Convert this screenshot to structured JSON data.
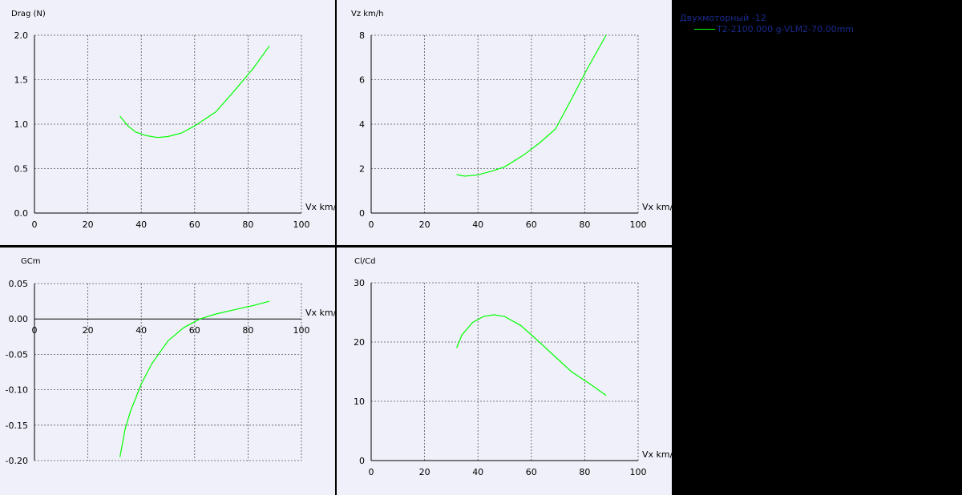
{
  "legend": {
    "title": "Двухмоторный -12",
    "series_label": "T2-2100.000 g-VLM2-70.00mm",
    "series_color": "#00ff00"
  },
  "colors": {
    "panel_bg": "#f0f0fa",
    "app_bg": "#000000",
    "axis": "#000000",
    "grid": "#555555",
    "curve": "#00ff00",
    "legend_text": "#1a2a8a"
  },
  "chart_data": [
    {
      "id": "drag",
      "type": "line",
      "title": "",
      "ylabel": "Drag (N)",
      "xlabel": "Vx km/",
      "xlim": [
        0,
        100
      ],
      "ylim": [
        0,
        2.0
      ],
      "xticks": [
        "0",
        "20",
        "40",
        "60",
        "80",
        "100"
      ],
      "yticks": [
        "0.0",
        "0.5",
        "1.0",
        "1.5",
        "2.0"
      ],
      "grid": true,
      "series": [
        {
          "x": [
            32,
            35,
            38,
            42,
            46,
            50,
            55,
            60,
            68,
            75,
            82,
            88
          ],
          "y": [
            1.09,
            0.98,
            0.91,
            0.87,
            0.85,
            0.86,
            0.9,
            0.98,
            1.14,
            1.38,
            1.63,
            1.88
          ]
        }
      ]
    },
    {
      "id": "vz",
      "type": "line",
      "title": "",
      "ylabel": "Vz km/h",
      "xlabel": "Vx km/",
      "xlim": [
        0,
        100
      ],
      "ylim": [
        0,
        8
      ],
      "xticks": [
        "0",
        "20",
        "40",
        "60",
        "80",
        "100"
      ],
      "yticks": [
        "0",
        "2",
        "4",
        "6",
        "8"
      ],
      "grid": true,
      "series": [
        {
          "x": [
            32,
            35,
            40,
            45,
            50,
            57,
            63,
            69,
            75,
            81,
            88
          ],
          "y": [
            1.73,
            1.66,
            1.72,
            1.88,
            2.08,
            2.6,
            3.15,
            3.78,
            5.12,
            6.5,
            8.0
          ]
        }
      ]
    },
    {
      "id": "gcm",
      "type": "line",
      "title": "",
      "ylabel": "GCm",
      "xlabel": "Vx km/",
      "xlim": [
        0,
        100
      ],
      "ylim": [
        -0.2,
        0.05
      ],
      "xticks": [
        "0",
        "20",
        "40",
        "60",
        "80",
        "100"
      ],
      "yticks": [
        "0.05",
        "0.00",
        "-0.05",
        "-0.10",
        "-0.15",
        "-0.20"
      ],
      "grid": true,
      "series": [
        {
          "x": [
            32,
            34,
            36,
            40,
            44,
            50,
            56,
            62,
            68,
            76,
            82,
            88
          ],
          "y": [
            -0.195,
            -0.155,
            -0.13,
            -0.092,
            -0.063,
            -0.031,
            -0.012,
            0.0,
            0.007,
            0.014,
            0.019,
            0.025
          ]
        }
      ]
    },
    {
      "id": "clcd",
      "type": "line",
      "title": "",
      "ylabel": "Cl/Cd",
      "xlabel": "Vx km/",
      "xlim": [
        0,
        100
      ],
      "ylim": [
        0,
        30
      ],
      "xticks": [
        "0",
        "20",
        "40",
        "60",
        "80",
        "100"
      ],
      "yticks": [
        "0",
        "10",
        "20",
        "30"
      ],
      "grid": true,
      "series": [
        {
          "x": [
            32,
            34,
            38,
            42,
            46,
            50,
            56,
            62,
            68,
            75,
            82,
            88
          ],
          "y": [
            19.0,
            21.2,
            23.3,
            24.3,
            24.6,
            24.3,
            22.8,
            20.4,
            17.9,
            15.0,
            12.9,
            11.0
          ]
        }
      ]
    }
  ]
}
